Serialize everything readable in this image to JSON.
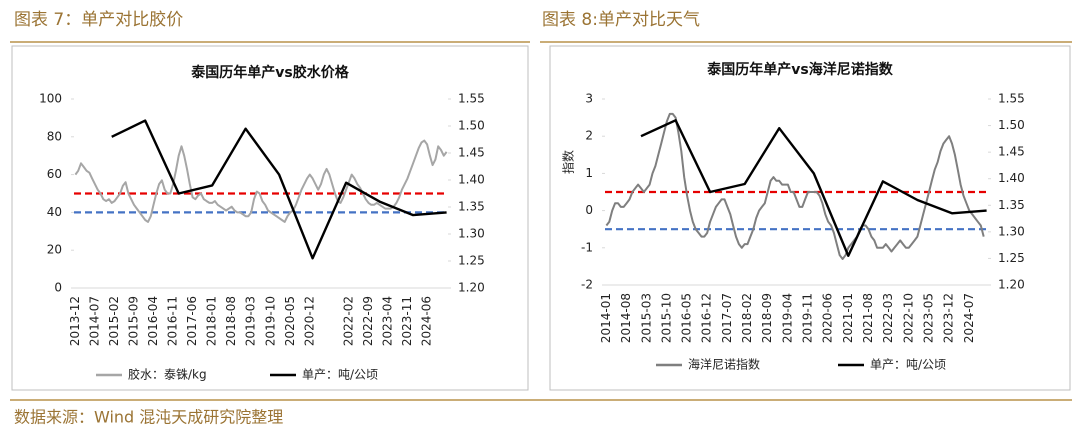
{
  "header": [
    "图表 7：单产对比胶价",
    "图表 8:单产对比天气"
  ],
  "source": "数据来源：Wind 混沌天成研究院整理",
  "chart_data": [
    {
      "type": "line",
      "title": "泰国历年单产vs胶水价格",
      "legend": "bottom",
      "categories": [
        "2013-12",
        null,
        null,
        null,
        null,
        null,
        null,
        "2014-07",
        null,
        null,
        null,
        null,
        null,
        null,
        "2015-02",
        null,
        null,
        null,
        null,
        null,
        null,
        "2015-09",
        null,
        null,
        null,
        null,
        null,
        null,
        "2016-04",
        null,
        null,
        null,
        null,
        null,
        null,
        "2016-11",
        null,
        null,
        null,
        null,
        null,
        null,
        "2017-06",
        null,
        null,
        null,
        null,
        null,
        null,
        "2018-01",
        null,
        null,
        null,
        null,
        null,
        null,
        "2018-08",
        null,
        null,
        null,
        null,
        null,
        null,
        "2019-03",
        null,
        null,
        null,
        null,
        null,
        null,
        "2019-10",
        null,
        null,
        null,
        null,
        null,
        null,
        "2020-05",
        null,
        null,
        null,
        null,
        null,
        null,
        "2020-12",
        null,
        null,
        null,
        null,
        null,
        null,
        null,
        null,
        null,
        null,
        null,
        null,
        null,
        "2022-02",
        null,
        null,
        null,
        null,
        null,
        null,
        "2022-09",
        null,
        null,
        null,
        null,
        null,
        null,
        "2023-04",
        null,
        null,
        null,
        null,
        null,
        null,
        "2023-11",
        null,
        null,
        null,
        null,
        null,
        null,
        "2024-06",
        null,
        null,
        null,
        null,
        null,
        null,
        null
      ],
      "series": [
        {
          "name": "胶水：泰铢/kg",
          "color": "#a6a6a6",
          "values": [
            60,
            62,
            66,
            64,
            62,
            61,
            58,
            55,
            52,
            50,
            47,
            46,
            47,
            45,
            46,
            48,
            50,
            54,
            56,
            50,
            47,
            44,
            42,
            40,
            38,
            36,
            35,
            38,
            44,
            50,
            55,
            57,
            52,
            50,
            50,
            55,
            62,
            70,
            75,
            70,
            63,
            55,
            48,
            47,
            49,
            50,
            47,
            46,
            45,
            45,
            46,
            44,
            43,
            42,
            41,
            42,
            43,
            41,
            40,
            40,
            39,
            38,
            38,
            40,
            47,
            51,
            50,
            46,
            44,
            41,
            40,
            39,
            38,
            37,
            36,
            35,
            38,
            40,
            41,
            44,
            48,
            52,
            55,
            58,
            60,
            58,
            55,
            52,
            55,
            60,
            63,
            60,
            55,
            50,
            46,
            45,
            48,
            52,
            56,
            60,
            58,
            55,
            53,
            50,
            47,
            45,
            44,
            44,
            45,
            44,
            43,
            42,
            42,
            42,
            43,
            45,
            48,
            52,
            55,
            58,
            62,
            66,
            70,
            74,
            77,
            78,
            76,
            70,
            65,
            68,
            75,
            73,
            70,
            72
          ]
        },
        {
          "name": "单产：吨/公顷",
          "color": "#000000",
          "axis": "y2",
          "x": [
            2014,
            2015,
            2016,
            2017,
            2018,
            2019,
            2020,
            2021,
            2022,
            2023,
            2024
          ],
          "values": [
            1.48,
            1.51,
            1.375,
            1.39,
            1.495,
            1.41,
            1.255,
            1.395,
            1.36,
            1.335,
            1.34
          ]
        }
      ],
      "hlines": [
        {
          "value": 50,
          "color": "#e60000"
        },
        {
          "value": 40,
          "color": "#4472c4"
        }
      ],
      "ylim": [
        0,
        100
      ],
      "yticks": [
        0,
        20,
        40,
        60,
        80,
        100
      ],
      "y2lim": [
        1.2,
        1.55
      ],
      "y2ticks": [
        {
          "value": 1.2,
          "label": "1.20"
        },
        1.25,
        {
          "value": 1.3,
          "label": "1.30"
        },
        1.35,
        {
          "value": 1.4,
          "label": "1.40"
        },
        1.45,
        {
          "value": 1.5,
          "label": "1.50"
        },
        1.55
      ]
    },
    {
      "type": "line",
      "title": "泰国历年单产vs海洋尼诺指数",
      "ylabel": "指数",
      "legend": "bottom",
      "categories": [
        "2014-01",
        null,
        null,
        null,
        null,
        null,
        null,
        "2014-08",
        null,
        null,
        null,
        null,
        null,
        null,
        "2015-03",
        null,
        null,
        null,
        null,
        null,
        null,
        "2015-10",
        null,
        null,
        null,
        null,
        null,
        null,
        "2016-05",
        null,
        null,
        null,
        null,
        null,
        null,
        "2016-12",
        null,
        null,
        null,
        null,
        null,
        null,
        "2017-07",
        null,
        null,
        null,
        null,
        null,
        null,
        "2018-02",
        null,
        null,
        null,
        null,
        null,
        null,
        "2018-09",
        null,
        null,
        null,
        null,
        null,
        null,
        "2019-04",
        null,
        null,
        null,
        null,
        null,
        null,
        "2019-11",
        null,
        null,
        null,
        null,
        null,
        null,
        "2020-06",
        null,
        null,
        null,
        null,
        null,
        null,
        "2021-01",
        null,
        null,
        null,
        null,
        null,
        null,
        "2021-08",
        null,
        null,
        null,
        null,
        null,
        null,
        "2022-03",
        null,
        null,
        null,
        null,
        null,
        null,
        "2022-10",
        null,
        null,
        null,
        null,
        null,
        null,
        "2023-05",
        null,
        null,
        null,
        null,
        null,
        null,
        "2023-12",
        null,
        null,
        null,
        null,
        null,
        null,
        "2024-07",
        null,
        null,
        null,
        null,
        null,
        null
      ],
      "series": [
        {
          "name": "海洋尼诺指数",
          "color": "#7f7f7f",
          "values": [
            -0.4,
            -0.3,
            0,
            0.2,
            0.2,
            0.1,
            0.1,
            0.2,
            0.3,
            0.5,
            0.6,
            0.7,
            0.6,
            0.5,
            0.6,
            0.7,
            1.0,
            1.2,
            1.5,
            1.8,
            2.1,
            2.4,
            2.6,
            2.6,
            2.5,
            2.1,
            1.6,
            0.9,
            0.4,
            0,
            -0.3,
            -0.5,
            -0.6,
            -0.7,
            -0.7,
            -0.6,
            -0.3,
            -0.1,
            0.1,
            0.2,
            0.3,
            0.3,
            0.1,
            -0.1,
            -0.4,
            -0.7,
            -0.9,
            -1.0,
            -0.9,
            -0.9,
            -0.7,
            -0.5,
            -0.2,
            0,
            0.1,
            0.2,
            0.5,
            0.8,
            0.9,
            0.8,
            0.8,
            0.7,
            0.7,
            0.7,
            0.5,
            0.5,
            0.3,
            0.1,
            0.1,
            0.3,
            0.5,
            0.5,
            0.5,
            0.5,
            0.4,
            0.2,
            -0.1,
            -0.3,
            -0.4,
            -0.6,
            -0.9,
            -1.2,
            -1.3,
            -1.2,
            -1.0,
            -0.9,
            -0.8,
            -0.7,
            -0.5,
            -0.4,
            -0.4,
            -0.5,
            -0.7,
            -0.8,
            -1.0,
            -1.0,
            -1.0,
            -0.9,
            -1.0,
            -1.1,
            -1.0,
            -0.9,
            -0.8,
            -0.9,
            -1.0,
            -1.0,
            -0.9,
            -0.8,
            -0.7,
            -0.4,
            -0.1,
            0.2,
            0.5,
            0.8,
            1.1,
            1.3,
            1.6,
            1.8,
            1.9,
            2.0,
            1.8,
            1.5,
            1.1,
            0.7,
            0.4,
            0.2,
            0,
            -0.1,
            -0.2,
            -0.3,
            -0.4,
            -0.7,
            null
          ]
        },
        {
          "name": "单产：吨/公顷",
          "color": "#000000",
          "axis": "y2",
          "x": [
            2014,
            2015,
            2016,
            2017,
            2018,
            2019,
            2020,
            2021,
            2022,
            2023,
            2024
          ],
          "values": [
            1.48,
            1.51,
            1.375,
            1.39,
            1.495,
            1.41,
            1.255,
            1.395,
            1.36,
            1.335,
            1.34
          ]
        }
      ],
      "hlines": [
        {
          "value": 0.5,
          "color": "#e60000"
        },
        {
          "value": -0.5,
          "color": "#4472c4"
        }
      ],
      "ylim": [
        -2,
        3
      ],
      "yticks": [
        -2,
        -1,
        0,
        1,
        2,
        3
      ],
      "y2lim": [
        1.2,
        1.55
      ],
      "y2ticks": [
        {
          "value": 1.2,
          "label": "1.20"
        },
        1.25,
        {
          "value": 1.3,
          "label": "1.30"
        },
        1.35,
        {
          "value": 1.4,
          "label": "1.40"
        },
        1.45,
        {
          "value": 1.5,
          "label": "1.50"
        },
        1.55
      ]
    }
  ]
}
